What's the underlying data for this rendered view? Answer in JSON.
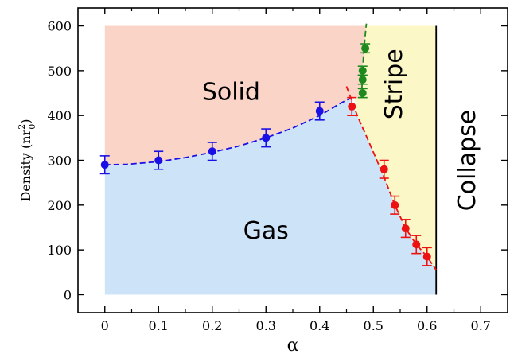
{
  "chart_data": {
    "type": "scatter",
    "title": "",
    "xlabel": "α",
    "ylabel": "Density (nr",
    "ylabel_sub": "0",
    "ylabel_sup": "2",
    "ylabel_close": ")",
    "xlim": [
      -0.05,
      0.75
    ],
    "ylim": [
      -40,
      640
    ],
    "xticks": [
      0,
      0.1,
      0.2,
      0.3,
      0.4,
      0.5,
      0.6,
      0.7
    ],
    "xtick_labels": [
      "0",
      "0.1",
      "0.2",
      "0.3",
      "0.4",
      "0.5",
      "0.6",
      "0.7"
    ],
    "yticks": [
      0,
      100,
      200,
      300,
      400,
      500,
      600
    ],
    "ytick_labels": [
      "0",
      "100",
      "200",
      "300",
      "400",
      "500",
      "600"
    ],
    "grid": false,
    "legend": "none",
    "regions": [
      {
        "name": "Solid",
        "color": "#f9d4c7"
      },
      {
        "name": "Gas",
        "color": "#cde4f8"
      },
      {
        "name": "Stripe",
        "color": "#fbf7c6"
      },
      {
        "name": "Collapse",
        "color": "#ffffff"
      }
    ],
    "series": [
      {
        "color": "#1a10e6",
        "x": [
          0,
          0.1,
          0.2,
          0.3,
          0.4
        ],
        "y": [
          290,
          300,
          320,
          350,
          410
        ],
        "yerr": [
          20,
          20,
          20,
          20,
          20
        ],
        "fit": {
          "x": [
            0,
            0.04,
            0.1,
            0.15,
            0.2,
            0.25,
            0.3,
            0.35,
            0.4,
            0.44,
            0.46
          ],
          "y": [
            290,
            291,
            297,
            306,
            318,
            332,
            350,
            372,
            400,
            428,
            440
          ]
        }
      },
      {
        "color": "#ee1111",
        "x": [
          0.46,
          0.52,
          0.54,
          0.56,
          0.58,
          0.6
        ],
        "y": [
          420,
          280,
          200,
          148,
          112,
          85
        ],
        "yerr": [
          20,
          20,
          20,
          20,
          20,
          20
        ],
        "fit": {
          "x": [
            0.45,
            0.47,
            0.5,
            0.52,
            0.54,
            0.56,
            0.58,
            0.6,
            0.617
          ],
          "y": [
            465,
            400,
            318,
            262,
            200,
            148,
            112,
            85,
            55
          ]
        }
      },
      {
        "color": "#1e8a1e",
        "x": [
          0.48,
          0.48,
          0.48,
          0.485
        ],
        "y": [
          450,
          480,
          500,
          550
        ],
        "yerr": [
          10,
          10,
          10,
          10
        ],
        "fit": {
          "x": [
            0.478,
            0.479,
            0.48,
            0.482,
            0.485,
            0.487
          ],
          "y": [
            440,
            470,
            500,
            540,
            580,
            605
          ]
        }
      }
    ],
    "collapse_boundary_x": 0.617
  }
}
